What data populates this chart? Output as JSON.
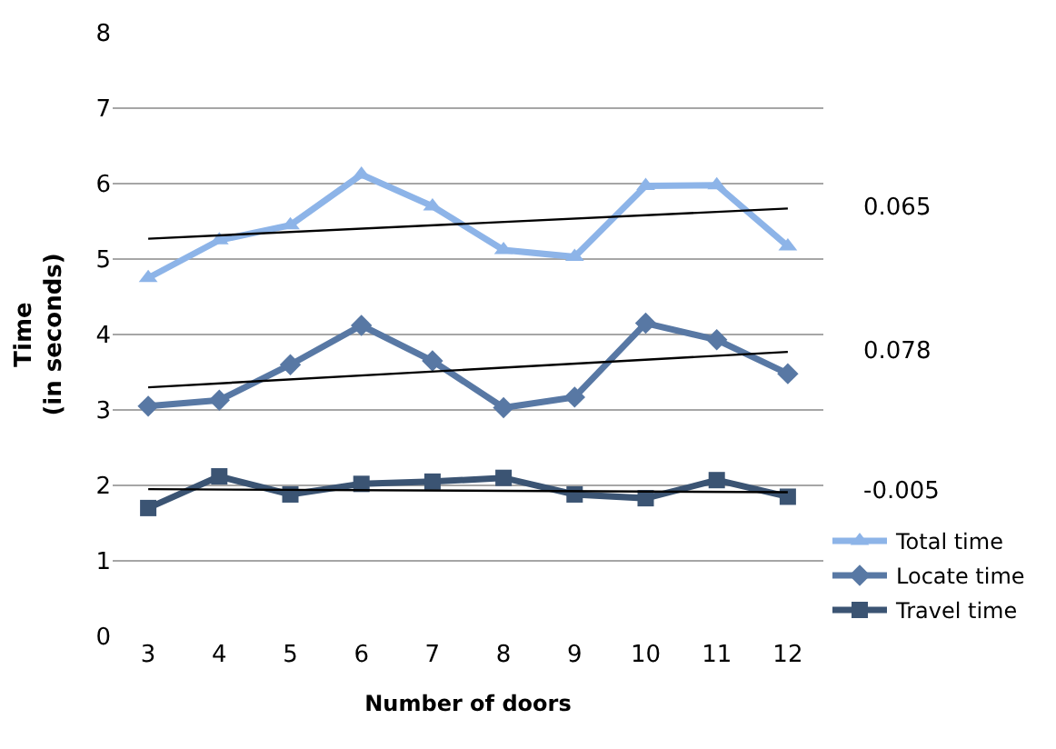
{
  "chart_data": {
    "type": "line",
    "xlabel": "Number of doors",
    "ylabel": "Time\n(in seconds)",
    "categories": [
      "3",
      "4",
      "5",
      "6",
      "7",
      "8",
      "9",
      "10",
      "11",
      "12"
    ],
    "ylim": [
      0,
      8
    ],
    "yticks": [
      0,
      1,
      2,
      3,
      4,
      5,
      6,
      7,
      8
    ],
    "grid": "y",
    "legend": "bottom right",
    "series": [
      {
        "name": "Total time",
        "color": "#8db4e8",
        "marker": "triangle",
        "values": [
          4.75,
          5.25,
          5.45,
          6.12,
          5.7,
          5.12,
          5.03,
          5.97,
          5.98,
          5.17
        ]
      },
      {
        "name": "Locate time",
        "color": "#5878a4",
        "marker": "diamond",
        "values": [
          3.05,
          3.13,
          3.6,
          4.12,
          3.65,
          3.03,
          3.17,
          4.15,
          3.93,
          3.48
        ]
      },
      {
        "name": "Travel time",
        "color": "#3b5473",
        "marker": "square",
        "values": [
          1.7,
          2.12,
          1.88,
          2.02,
          2.05,
          2.1,
          1.88,
          1.83,
          2.07,
          1.85
        ]
      },
      {
        "type": "line",
        "color": "#000000",
        "marker": "none",
        "x": [
          "3",
          "12"
        ],
        "values": [
          5.27,
          5.67
        ]
      },
      {
        "type": "line",
        "color": "#000000",
        "marker": "none",
        "x": [
          "3",
          "12"
        ],
        "values": [
          3.3,
          3.77
        ]
      },
      {
        "type": "line",
        "color": "#000000",
        "marker": "none",
        "x": [
          "3",
          "12"
        ],
        "values": [
          1.95,
          1.91
        ]
      }
    ],
    "annotations": [
      "0.065",
      "0.078",
      "-0.005"
    ]
  }
}
